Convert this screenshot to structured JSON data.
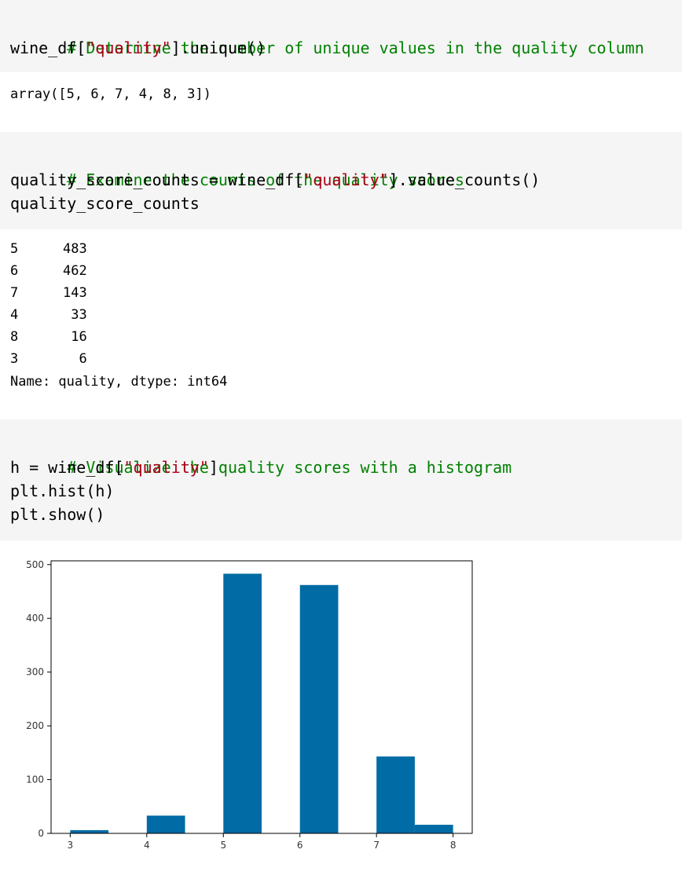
{
  "cells": {
    "cell1": {
      "comment": "# Determine the number of unique values in the quality column",
      "code_pre": "wine_df[",
      "code_str": "\"quality\"",
      "code_post": "].unique()",
      "output": "array([5, 6, 7, 4, 8, 3])"
    },
    "cell2": {
      "comment": "# Examine the counts of the quality scores",
      "code_pre": "quality_score_counts = wine_df[",
      "code_str": "\"quality\"",
      "code_post": "].value_counts()",
      "code_line2": "quality_score_counts",
      "rows": [
        {
          "idx": "5",
          "val": "483"
        },
        {
          "idx": "6",
          "val": "462"
        },
        {
          "idx": "7",
          "val": "143"
        },
        {
          "idx": "4",
          "val": " 33"
        },
        {
          "idx": "8",
          "val": " 16"
        },
        {
          "idx": "3",
          "val": "  6"
        }
      ],
      "footer": "Name: quality, dtype: int64"
    },
    "cell3": {
      "comment": "# Visualize the quality scores with a histogram",
      "code_pre": "h = wine_df[",
      "code_str": "\"quality\"",
      "code_post": "]",
      "code_line2": "plt.hist(h)",
      "code_line3": "plt.show()"
    }
  },
  "colors": {
    "bar": "#006ba4",
    "comment": "#008000",
    "string": "#b0001a",
    "cell_background": "#f5f5f5"
  },
  "chart_data": {
    "type": "bar",
    "title": "",
    "xlabel": "",
    "ylabel": "",
    "xlim": [
      2.75,
      8.25
    ],
    "ylim": [
      0,
      507
    ],
    "x_ticks": [
      "3",
      "4",
      "5",
      "6",
      "7",
      "8"
    ],
    "y_ticks": [
      "0",
      "100",
      "200",
      "300",
      "400",
      "500"
    ],
    "bins": [
      {
        "x0": 3.0,
        "x1": 3.5,
        "count": 6
      },
      {
        "x0": 3.5,
        "x1": 4.0,
        "count": 0
      },
      {
        "x0": 4.0,
        "x1": 4.5,
        "count": 33
      },
      {
        "x0": 4.5,
        "x1": 5.0,
        "count": 0
      },
      {
        "x0": 5.0,
        "x1": 5.5,
        "count": 483
      },
      {
        "x0": 5.5,
        "x1": 6.0,
        "count": 0
      },
      {
        "x0": 6.0,
        "x1": 6.5,
        "count": 462
      },
      {
        "x0": 6.5,
        "x1": 7.0,
        "count": 0
      },
      {
        "x0": 7.0,
        "x1": 7.5,
        "count": 143
      },
      {
        "x0": 7.5,
        "x1": 8.0,
        "count": 16
      }
    ]
  }
}
